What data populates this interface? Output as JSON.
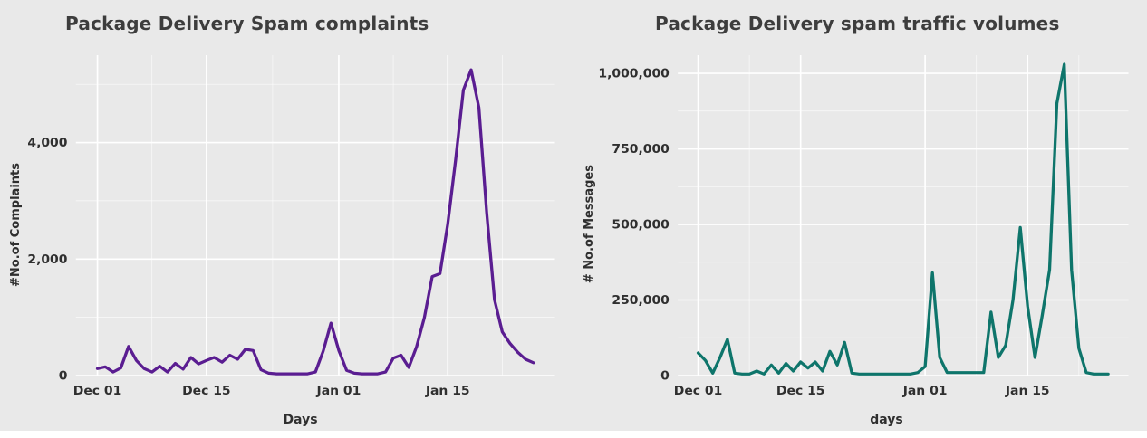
{
  "page": {
    "background_color": "#e9e9e9",
    "gridline_color": "#ffffff",
    "title_color": "#3d3d3d"
  },
  "chart_data": [
    {
      "type": "line",
      "title": "Package Delivery Spam complaints",
      "xlabel": "Days",
      "ylabel": "#No.of Complaints",
      "color": "#5a1d91",
      "ylim": [
        0,
        5500
      ],
      "grid": true,
      "legend": "none",
      "y_ticks": [
        {
          "value": 0,
          "label": "0"
        },
        {
          "value": 2000,
          "label": "2,000"
        },
        {
          "value": 4000,
          "label": "4,000"
        }
      ],
      "x_ticks": [
        {
          "index": 0,
          "label": "Dec 01"
        },
        {
          "index": 14,
          "label": "Dec 15"
        },
        {
          "index": 31,
          "label": "Jan 01"
        },
        {
          "index": 45,
          "label": "Jan 15"
        }
      ],
      "x": [
        "Dec 01",
        "Dec 02",
        "Dec 03",
        "Dec 04",
        "Dec 05",
        "Dec 06",
        "Dec 07",
        "Dec 08",
        "Dec 09",
        "Dec 10",
        "Dec 11",
        "Dec 12",
        "Dec 13",
        "Dec 14",
        "Dec 15",
        "Dec 16",
        "Dec 17",
        "Dec 18",
        "Dec 19",
        "Dec 20",
        "Dec 21",
        "Dec 22",
        "Dec 23",
        "Dec 24",
        "Dec 25",
        "Dec 26",
        "Dec 27",
        "Dec 28",
        "Dec 29",
        "Dec 30",
        "Dec 31",
        "Jan 01",
        "Jan 02",
        "Jan 03",
        "Jan 04",
        "Jan 05",
        "Jan 06",
        "Jan 07",
        "Jan 08",
        "Jan 09",
        "Jan 10",
        "Jan 11",
        "Jan 12",
        "Jan 13",
        "Jan 14",
        "Jan 15",
        "Jan 16",
        "Jan 17",
        "Jan 18",
        "Jan 19",
        "Jan 20",
        "Jan 21",
        "Jan 22",
        "Jan 23",
        "Jan 24",
        "Jan 25",
        "Jan 26"
      ],
      "values": [
        120,
        150,
        60,
        130,
        500,
        260,
        120,
        60,
        160,
        60,
        210,
        110,
        310,
        200,
        260,
        310,
        230,
        350,
        280,
        450,
        430,
        100,
        40,
        30,
        30,
        30,
        30,
        30,
        60,
        420,
        900,
        430,
        90,
        40,
        30,
        30,
        30,
        60,
        300,
        350,
        140,
        500,
        1000,
        1700,
        1750,
        2600,
        3700,
        4900,
        5250,
        4600,
        2800,
        1300,
        750,
        550,
        400,
        280,
        220
      ]
    },
    {
      "type": "line",
      "title": "Package Delivery spam traffic volumes",
      "xlabel": "days",
      "ylabel": "# No.of Messages",
      "color": "#0e756b",
      "ylim": [
        0,
        1060000
      ],
      "grid": true,
      "legend": "none",
      "y_ticks": [
        {
          "value": 0,
          "label": "0"
        },
        {
          "value": 250000,
          "label": "250,000"
        },
        {
          "value": 500000,
          "label": "500,000"
        },
        {
          "value": 750000,
          "label": "750,000"
        },
        {
          "value": 1000000,
          "label": "1,000,000"
        }
      ],
      "x_ticks": [
        {
          "index": 0,
          "label": "Dec 01"
        },
        {
          "index": 14,
          "label": "Dec 15"
        },
        {
          "index": 31,
          "label": "Jan 01"
        },
        {
          "index": 45,
          "label": "Jan 15"
        }
      ],
      "x": [
        "Dec 01",
        "Dec 02",
        "Dec 03",
        "Dec 04",
        "Dec 05",
        "Dec 06",
        "Dec 07",
        "Dec 08",
        "Dec 09",
        "Dec 10",
        "Dec 11",
        "Dec 12",
        "Dec 13",
        "Dec 14",
        "Dec 15",
        "Dec 16",
        "Dec 17",
        "Dec 18",
        "Dec 19",
        "Dec 20",
        "Dec 21",
        "Dec 22",
        "Dec 23",
        "Dec 24",
        "Dec 25",
        "Dec 26",
        "Dec 27",
        "Dec 28",
        "Dec 29",
        "Dec 30",
        "Dec 31",
        "Jan 01",
        "Jan 02",
        "Jan 03",
        "Jan 04",
        "Jan 05",
        "Jan 06",
        "Jan 07",
        "Jan 08",
        "Jan 09",
        "Jan 10",
        "Jan 11",
        "Jan 12",
        "Jan 13",
        "Jan 14",
        "Jan 15",
        "Jan 16",
        "Jan 17",
        "Jan 18",
        "Jan 19",
        "Jan 20",
        "Jan 21",
        "Jan 22",
        "Jan 23",
        "Jan 24",
        "Jan 25",
        "Jan 26"
      ],
      "values": [
        75000,
        50000,
        8000,
        60000,
        120000,
        8000,
        5000,
        5000,
        15000,
        5000,
        35000,
        8000,
        40000,
        15000,
        45000,
        25000,
        45000,
        15000,
        80000,
        35000,
        110000,
        8000,
        5000,
        5000,
        5000,
        5000,
        5000,
        5000,
        5000,
        5000,
        10000,
        30000,
        340000,
        60000,
        10000,
        10000,
        10000,
        10000,
        10000,
        10000,
        210000,
        60000,
        100000,
        250000,
        490000,
        230000,
        60000,
        200000,
        350000,
        900000,
        1030000,
        350000,
        90000,
        10000,
        5000,
        5000,
        5000
      ]
    }
  ]
}
